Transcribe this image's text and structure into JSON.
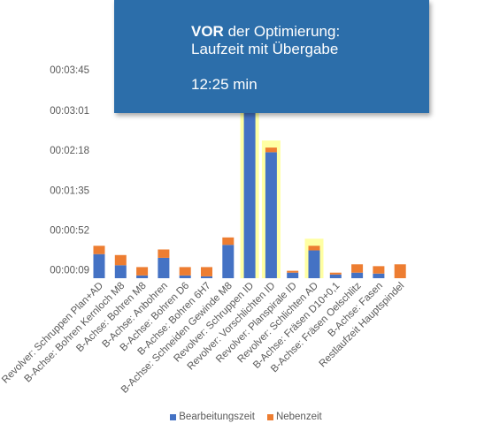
{
  "info": {
    "bold_prefix": "VOR",
    "line1_rest": " der Optimierung:",
    "line2": "Laufzeit mit Übergabe",
    "time": "12:25 min"
  },
  "colors": {
    "bearbeitung": "#4472c4",
    "neben": "#ed7d31",
    "highlight": "#ffff99",
    "header_bg": "#2c6eaa"
  },
  "chart_data": {
    "type": "bar",
    "stacked": true,
    "title": "",
    "xlabel": "",
    "ylabel": "",
    "ylim_seconds": [
      0,
      225
    ],
    "y_ticks": [
      {
        "label": "00:00:09",
        "seconds": 9
      },
      {
        "label": "00:00:52",
        "seconds": 52
      },
      {
        "label": "00:01:35",
        "seconds": 95
      },
      {
        "label": "00:02:18",
        "seconds": 138
      },
      {
        "label": "00:03:01",
        "seconds": 181
      },
      {
        "label": "00:03:45",
        "seconds": 225
      }
    ],
    "categories": [
      "Revolver: Schruppen Plan+AD",
      "B-Achse: Bohren Kernloch M8",
      "B-Achse: Bohren M8",
      "B-Achse: Anbohren",
      "B-Achse: Bohren D6",
      "B-Achse: Bohren 6H7",
      "B-Achse: Schneiden Gewinde M8",
      "Revolver: Schruppen ID",
      "Revolver: Vorschlichten ID",
      "Revolver: Planspirale ID",
      "Revolver: Schlichten AD",
      "B-Achse: Fräsen D10+0,1",
      "B-Achse: Fräsen Oelschlitz",
      "B-Achse: Fasen",
      "Restlaufzeit Hauptspindel"
    ],
    "series": [
      {
        "name": "Bearbeitungszeit",
        "values": [
          26,
          14,
          3,
          22,
          3,
          2,
          36,
          182,
          136,
          6,
          30,
          4,
          6,
          5,
          0
        ]
      },
      {
        "name": "Nebenzeit",
        "values": [
          9,
          11,
          9,
          9,
          9,
          10,
          8,
          8,
          5,
          2,
          5,
          2,
          9,
          8,
          15
        ]
      }
    ],
    "highlighted_categories": [
      "Revolver: Schruppen ID",
      "Revolver: Vorschlichten ID",
      "Revolver: Schlichten AD"
    ],
    "grid": false,
    "legend_position": "bottom"
  }
}
